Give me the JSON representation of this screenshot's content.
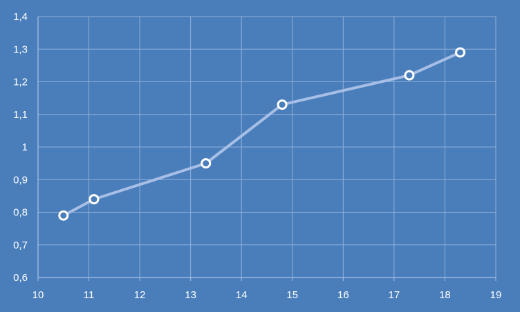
{
  "colors": {
    "background": "#4a7ebb",
    "grid": "#8fb0db",
    "axis": "#a9c3e6",
    "line": "#a7bfe6",
    "marker_fill": "#4a7ebb",
    "marker_stroke": "#ffffff",
    "tick_label": "#ffffff"
  },
  "chart_data": {
    "type": "scatter",
    "title": "",
    "xlabel": "",
    "ylabel": "",
    "xlim": [
      10,
      19
    ],
    "ylim": [
      0.6,
      1.4
    ],
    "x_ticks": [
      10,
      11,
      12,
      13,
      14,
      15,
      16,
      17,
      18,
      19
    ],
    "y_ticks": [
      0.6,
      0.7,
      0.8,
      0.9,
      1.0,
      1.1,
      1.2,
      1.3,
      1.4
    ],
    "x_tick_labels": [
      "10",
      "11",
      "12",
      "13",
      "14",
      "15",
      "16",
      "17",
      "18",
      "19"
    ],
    "y_tick_labels": [
      "0,6",
      "0,7",
      "0,8",
      "0,9",
      "1",
      "1,1",
      "1,2",
      "1,3",
      "1,4"
    ],
    "grid": true,
    "legend": "none",
    "series": [
      {
        "x": [
          10.5,
          11.1,
          13.3,
          14.8,
          17.3,
          18.3
        ],
        "y": [
          0.79,
          0.84,
          0.95,
          1.13,
          1.22,
          1.29
        ]
      }
    ]
  }
}
